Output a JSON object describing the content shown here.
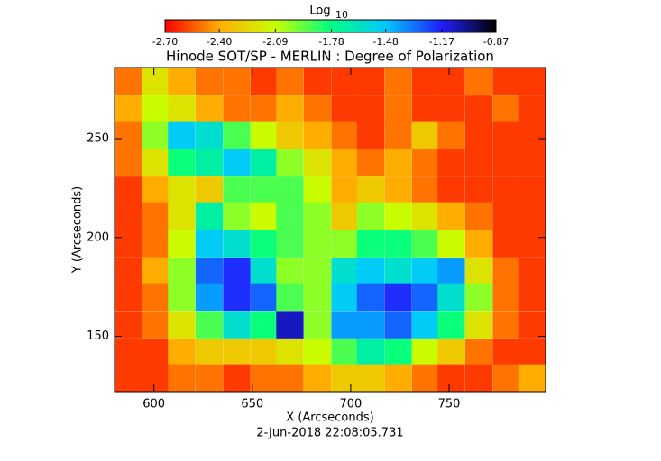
{
  "chart_data": {
    "type": "heatmap",
    "title": "Hinode SOT/SP - MERLIN : Degree of Polarization",
    "colorbar_label": "Log",
    "colorbar_label_sub": "10",
    "x_label": "X (Arcseconds)",
    "y_label": "Y (Arcseconds)",
    "timestamp": "2-Jun-2018 22:08:05.731",
    "xlim": [
      580,
      799
    ],
    "ylim": [
      122,
      286
    ],
    "xticks": [
      600,
      650,
      700,
      750
    ],
    "yticks": [
      150,
      200,
      250
    ],
    "clim": [
      -2.7,
      -0.87
    ],
    "cticks": [
      {
        "value": -2.7,
        "label": "-2.70"
      },
      {
        "value": -2.4,
        "label": "-2.40"
      },
      {
        "value": -2.09,
        "label": "-2.09"
      },
      {
        "value": -1.78,
        "label": "-1.78"
      },
      {
        "value": -1.48,
        "label": "-1.48"
      },
      {
        "value": -1.17,
        "label": "-1.17"
      },
      {
        "value": -0.87,
        "label": "-0.87"
      }
    ],
    "colormap": [
      "#ff0000",
      "#ffb000",
      "#c8ff00",
      "#00ff80",
      "#00c8ff",
      "#2020ff",
      "#000000"
    ],
    "x": [
      587,
      601,
      614,
      628,
      642,
      656,
      669,
      683,
      697,
      710,
      724,
      738,
      751,
      765,
      779,
      792
    ],
    "y": [
      279,
      265,
      252,
      238,
      224,
      211,
      197,
      183,
      170,
      156,
      142,
      129
    ],
    "z": [
      [
        -2.5,
        -2.2,
        -2.4,
        -2.5,
        -2.5,
        -2.6,
        -2.5,
        -2.6,
        -2.6,
        -2.6,
        -2.5,
        -2.6,
        -2.6,
        -2.5,
        -2.6,
        -2.6
      ],
      [
        -2.4,
        -2.1,
        -2.2,
        -2.4,
        -2.5,
        -2.5,
        -2.4,
        -2.5,
        -2.6,
        -2.6,
        -2.5,
        -2.6,
        -2.6,
        -2.6,
        -2.5,
        -2.6
      ],
      [
        -2.5,
        -2.0,
        -1.5,
        -1.6,
        -1.9,
        -2.1,
        -2.3,
        -2.4,
        -2.5,
        -2.6,
        -2.5,
        -2.3,
        -2.5,
        -2.6,
        -2.6,
        -2.6
      ],
      [
        -2.5,
        -2.2,
        -1.8,
        -1.7,
        -1.5,
        -1.7,
        -2.0,
        -2.2,
        -2.4,
        -2.5,
        -2.4,
        -2.5,
        -2.6,
        -2.6,
        -2.6,
        -2.6
      ],
      [
        -2.6,
        -2.4,
        -2.2,
        -2.3,
        -1.9,
        -1.9,
        -1.9,
        -2.1,
        -2.4,
        -2.3,
        -2.4,
        -2.5,
        -2.6,
        -2.6,
        -2.6,
        -2.6
      ],
      [
        -2.6,
        -2.5,
        -2.2,
        -1.7,
        -2.0,
        -2.1,
        -1.9,
        -2.0,
        -2.3,
        -2.0,
        -2.1,
        -2.2,
        -2.4,
        -2.5,
        -2.6,
        -2.6
      ],
      [
        -2.6,
        -2.5,
        -2.1,
        -1.5,
        -1.6,
        -1.8,
        -1.9,
        -2.0,
        -2.0,
        -1.8,
        -1.8,
        -1.9,
        -2.1,
        -2.4,
        -2.6,
        -2.6
      ],
      [
        -2.6,
        -2.4,
        -2.0,
        -1.3,
        -1.2,
        -1.6,
        -2.0,
        -2.0,
        -1.6,
        -1.5,
        -1.6,
        -1.5,
        -1.4,
        -2.2,
        -2.5,
        -2.6
      ],
      [
        -2.6,
        -2.5,
        -2.0,
        -1.4,
        -1.2,
        -1.3,
        -1.9,
        -2.0,
        -1.5,
        -1.3,
        -1.2,
        -1.3,
        -1.6,
        -2.0,
        -2.5,
        -2.6
      ],
      [
        -2.6,
        -2.5,
        -2.2,
        -1.9,
        -1.6,
        -1.8,
        -1.1,
        -2.0,
        -1.4,
        -1.4,
        -1.3,
        -1.5,
        -1.8,
        -2.2,
        -2.5,
        -2.6
      ],
      [
        -2.6,
        -2.6,
        -2.4,
        -2.3,
        -2.3,
        -2.3,
        -2.2,
        -2.1,
        -1.9,
        -1.7,
        -1.8,
        -2.1,
        -2.3,
        -2.5,
        -2.6,
        -2.6
      ],
      [
        -2.6,
        -2.6,
        -2.5,
        -2.5,
        -2.6,
        -2.5,
        -2.5,
        -2.4,
        -2.3,
        -2.3,
        -2.4,
        -2.5,
        -2.6,
        -2.6,
        -2.5,
        -2.4
      ]
    ]
  }
}
